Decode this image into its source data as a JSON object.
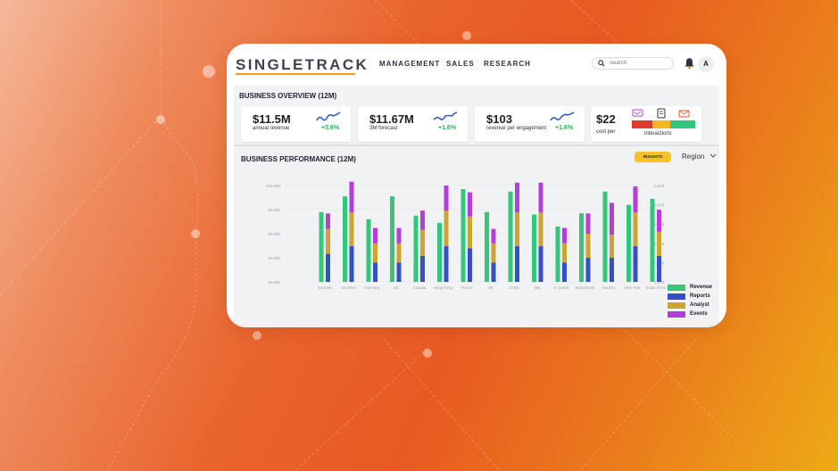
{
  "brand": {
    "logo_text": "SINGLETRACK",
    "accent": "#f39a1e"
  },
  "nav": {
    "items": [
      "MANAGEMENT",
      "SALES",
      "RESEARCH"
    ]
  },
  "search": {
    "placeholder": "Search",
    "value": ""
  },
  "user": {
    "avatar_letter": "A"
  },
  "icons": {
    "search": "search-icon",
    "bell": "bell-icon",
    "dropdown": "chevron-down-icon"
  },
  "overview": {
    "title": "BUSINESS OVERVIEW (12M)",
    "kpis": [
      {
        "value": "$11.5M",
        "label": "annual revenue",
        "change": "+3.6%"
      },
      {
        "value": "$11.67M",
        "label": "3M forecast",
        "change": "+1.6%"
      },
      {
        "value": "$103",
        "label": "revenue per engagement",
        "change": "+1.6%"
      },
      {
        "value": "$22",
        "label": "cost per",
        "sublabel": "interactions"
      }
    ]
  },
  "performance": {
    "title": "BUSINESS PERFORMANCE (12M)",
    "insights_label": "INSIGHTS",
    "region_label": "Region"
  },
  "colors": {
    "revenue": "#34c77b",
    "reports": "#3550c4",
    "analyst": "#caa532",
    "events": "#b33fd8",
    "positive": "#2bb24c"
  },
  "chart_data": {
    "type": "bar",
    "title": "BUSINESS PERFORMANCE (12M)",
    "categories": [
      "US East",
      "US West",
      "Germany",
      "UK",
      "Canada",
      "Hong Kong",
      "France",
      "HK",
      "China",
      "Italy",
      "S. Korea",
      "Switzerland",
      "Nordics",
      "New York",
      "South Africa"
    ],
    "ylim_left": [
      20000,
      100000
    ],
    "yticks_left": [
      "100,000",
      "80,000",
      "60,000",
      "40,000",
      "20,000"
    ],
    "ylim_right": [
      1000,
      6000
    ],
    "yticks_right": [
      "6,000",
      "5,000",
      "4,000",
      "3,000",
      "2,000",
      "1,000"
    ],
    "series": [
      {
        "name": "Revenue",
        "axis": "left",
        "values": [
          78000,
          91000,
          72000,
          91000,
          75000,
          69000,
          97000,
          78000,
          95000,
          76000,
          66000,
          77000,
          95000,
          84000,
          89000
        ]
      },
      {
        "name": "Reports",
        "axis": "right",
        "values": [
          1450,
          1850,
          1000,
          1000,
          1350,
          1850,
          1750,
          1000,
          1850,
          1850,
          1000,
          1250,
          1250,
          1850,
          1350
        ]
      },
      {
        "name": "Analyst",
        "axis": "right",
        "values": [
          1300,
          1750,
          1000,
          1000,
          1350,
          1850,
          1650,
          1000,
          1750,
          1750,
          1000,
          1250,
          1200,
          1750,
          1250
        ]
      },
      {
        "name": "Events",
        "axis": "right",
        "values": [
          800,
          1600,
          800,
          800,
          1000,
          1300,
          1250,
          750,
          1550,
          1550,
          800,
          1050,
          1650,
          1350,
          1150
        ]
      }
    ],
    "legend": [
      "Revenue",
      "Reports",
      "Analyst",
      "Events"
    ],
    "legend_position": "bottom-right"
  }
}
